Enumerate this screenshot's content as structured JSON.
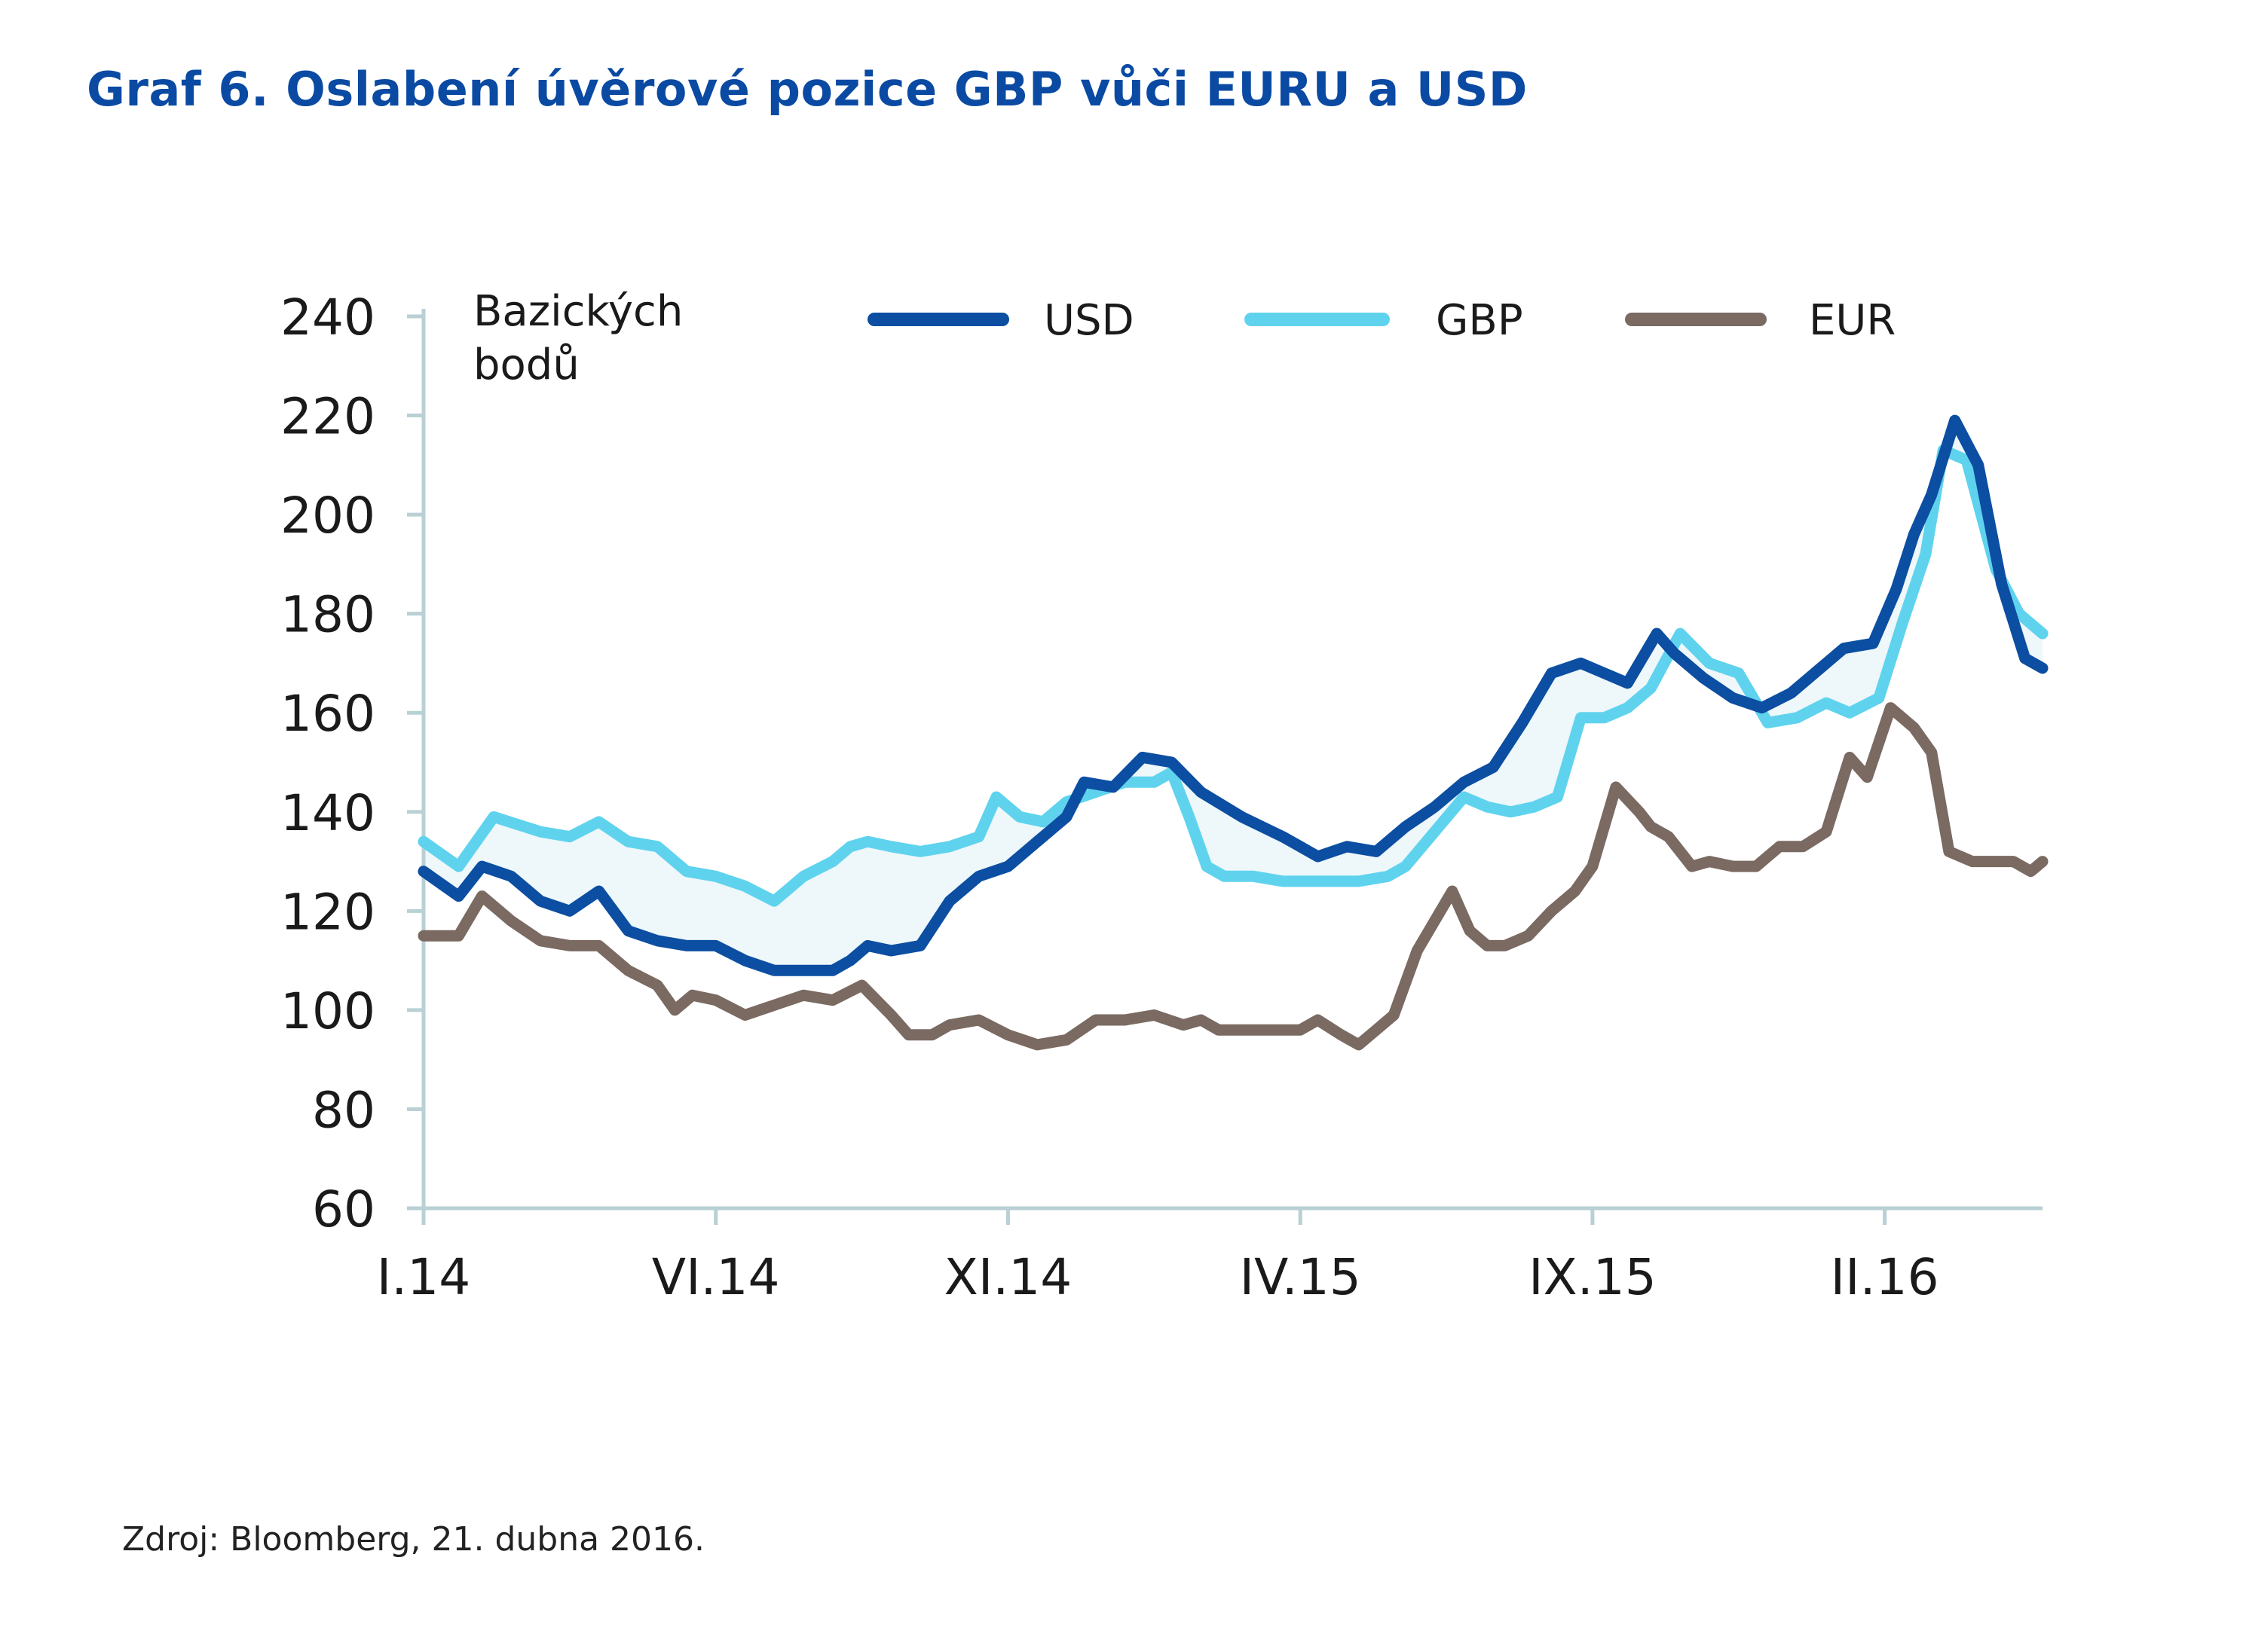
{
  "title": "Graf 6. Oslabení úvěrové pozice GBP vůči EURU a USD",
  "source": "Zdroj: Bloomberg, 21. dubna 2016.",
  "colors": {
    "usd": "#0b4ea2",
    "gbp": "#5fd3ee",
    "eur": "#7a6a62",
    "axis": "#b9d0d4",
    "fill": "#eef7fa"
  },
  "chart_data": {
    "type": "line",
    "title": "Graf 6. Oslabení úvěrové pozice GBP vůči EURU a USD",
    "ylabel_line1": "Bazických",
    "ylabel_line2": "bodů",
    "ylim": [
      60,
      240
    ],
    "yticks": [
      "240",
      "220",
      "200",
      "180",
      "160",
      "140",
      "120",
      "100",
      "80",
      "60"
    ],
    "xticks": [
      "I.14",
      "VI.14",
      "XI.14",
      "IV.15",
      "IX.15",
      "II.16"
    ],
    "x_tick_positions_months": [
      0,
      5,
      10,
      15,
      20,
      25
    ],
    "xlim_months": [
      0,
      27.7
    ],
    "grid": false,
    "legend": "top",
    "series": [
      {
        "name": "USD",
        "color": "#0b4ea2",
        "x": [
          0,
          0.6,
          1.0,
          1.5,
          2.0,
          2.5,
          3.0,
          3.5,
          4.0,
          4.5,
          5.0,
          5.5,
          6.0,
          6.5,
          7.0,
          7.3,
          7.6,
          8.0,
          8.5,
          9.0,
          9.5,
          10.0,
          10.5,
          11.0,
          11.3,
          11.8,
          12.3,
          12.8,
          13.3,
          14.0,
          14.7,
          15.0,
          15.3,
          15.8,
          16.3,
          16.8,
          17.3,
          17.8,
          18.3,
          18.8,
          19.3,
          19.8,
          20.2,
          20.6,
          21.1,
          21.4,
          21.9,
          22.4,
          22.9,
          23.4,
          23.9,
          24.3,
          24.8,
          25.2,
          25.5,
          25.8,
          26.2,
          26.6,
          27.0,
          27.4,
          27.7
        ],
        "values": [
          128,
          123,
          129,
          127,
          122,
          120,
          124,
          116,
          114,
          113,
          113,
          110,
          108,
          108,
          108,
          110,
          113,
          112,
          113,
          122,
          127,
          129,
          134,
          139,
          146,
          145,
          151,
          150,
          144,
          139,
          135,
          133,
          131,
          133,
          132,
          137,
          141,
          146,
          149,
          158,
          168,
          170,
          168,
          166,
          176,
          172,
          167,
          163,
          161,
          164,
          169,
          173,
          174,
          185,
          196,
          204,
          219,
          210,
          186,
          171,
          169
        ]
      },
      {
        "name": "GBP",
        "color": "#5fd3ee",
        "x": [
          0,
          0.6,
          1.2,
          2.0,
          2.5,
          3.0,
          3.5,
          4.0,
          4.5,
          5.0,
          5.5,
          6.0,
          6.5,
          7.0,
          7.3,
          7.6,
          8.0,
          8.5,
          9.0,
          9.5,
          9.8,
          10.2,
          10.6,
          11.0,
          11.5,
          12.0,
          12.5,
          12.8,
          13.1,
          13.4,
          13.7,
          14.2,
          14.7,
          15.0,
          15.5,
          16.0,
          16.5,
          16.8,
          17.3,
          17.8,
          18.2,
          18.6,
          19.0,
          19.4,
          19.8,
          20.2,
          20.6,
          21.0,
          21.5,
          22.0,
          22.5,
          23.0,
          23.5,
          24.0,
          24.4,
          24.9,
          25.3,
          25.7,
          26.0,
          26.4,
          26.9,
          27.3,
          27.7
        ],
        "values": [
          134,
          129,
          139,
          136,
          135,
          138,
          134,
          133,
          128,
          127,
          125,
          122,
          127,
          130,
          133,
          134,
          133,
          132,
          133,
          135,
          143,
          139,
          138,
          142,
          144,
          146,
          146,
          148,
          139,
          129,
          127,
          127,
          126,
          126,
          126,
          126,
          127,
          129,
          136,
          143,
          141,
          140,
          141,
          143,
          159,
          159,
          161,
          165,
          176,
          170,
          168,
          158,
          159,
          162,
          160,
          163,
          178,
          192,
          213,
          211,
          189,
          180,
          176
        ]
      },
      {
        "name": "EUR",
        "color": "#7a6a62",
        "x": [
          0,
          0.6,
          1.0,
          1.5,
          2.0,
          2.5,
          3.0,
          3.5,
          4.0,
          4.3,
          4.6,
          5.0,
          5.5,
          6.0,
          6.5,
          7.0,
          7.5,
          8.0,
          8.3,
          8.7,
          9.0,
          9.5,
          10.0,
          10.5,
          11.0,
          11.5,
          12.0,
          12.5,
          13.0,
          13.3,
          13.6,
          14.0,
          14.5,
          15.0,
          15.3,
          15.7,
          16.0,
          16.3,
          16.6,
          17.0,
          17.3,
          17.6,
          17.9,
          18.2,
          18.5,
          18.9,
          19.3,
          19.7,
          20.0,
          20.4,
          20.8,
          21.0,
          21.3,
          21.7,
          22.0,
          22.4,
          22.8,
          23.2,
          23.6,
          24.0,
          24.4,
          24.7,
          25.1,
          25.5,
          25.8,
          26.1,
          26.5,
          26.8,
          27.2,
          27.5,
          27.7
        ],
        "values": [
          115,
          115,
          123,
          118,
          114,
          113,
          113,
          108,
          105,
          100,
          103,
          102,
          99,
          101,
          103,
          102,
          105,
          99,
          95,
          95,
          97,
          98,
          95,
          93,
          94,
          98,
          98,
          99,
          97,
          98,
          96,
          96,
          96,
          96,
          98,
          95,
          93,
          96,
          99,
          112,
          118,
          124,
          116,
          113,
          113,
          115,
          120,
          124,
          129,
          145,
          140,
          137,
          135,
          129,
          130,
          129,
          129,
          133,
          133,
          136,
          151,
          147,
          161,
          157,
          152,
          132,
          130,
          130,
          130,
          128,
          130
        ]
      }
    ]
  }
}
